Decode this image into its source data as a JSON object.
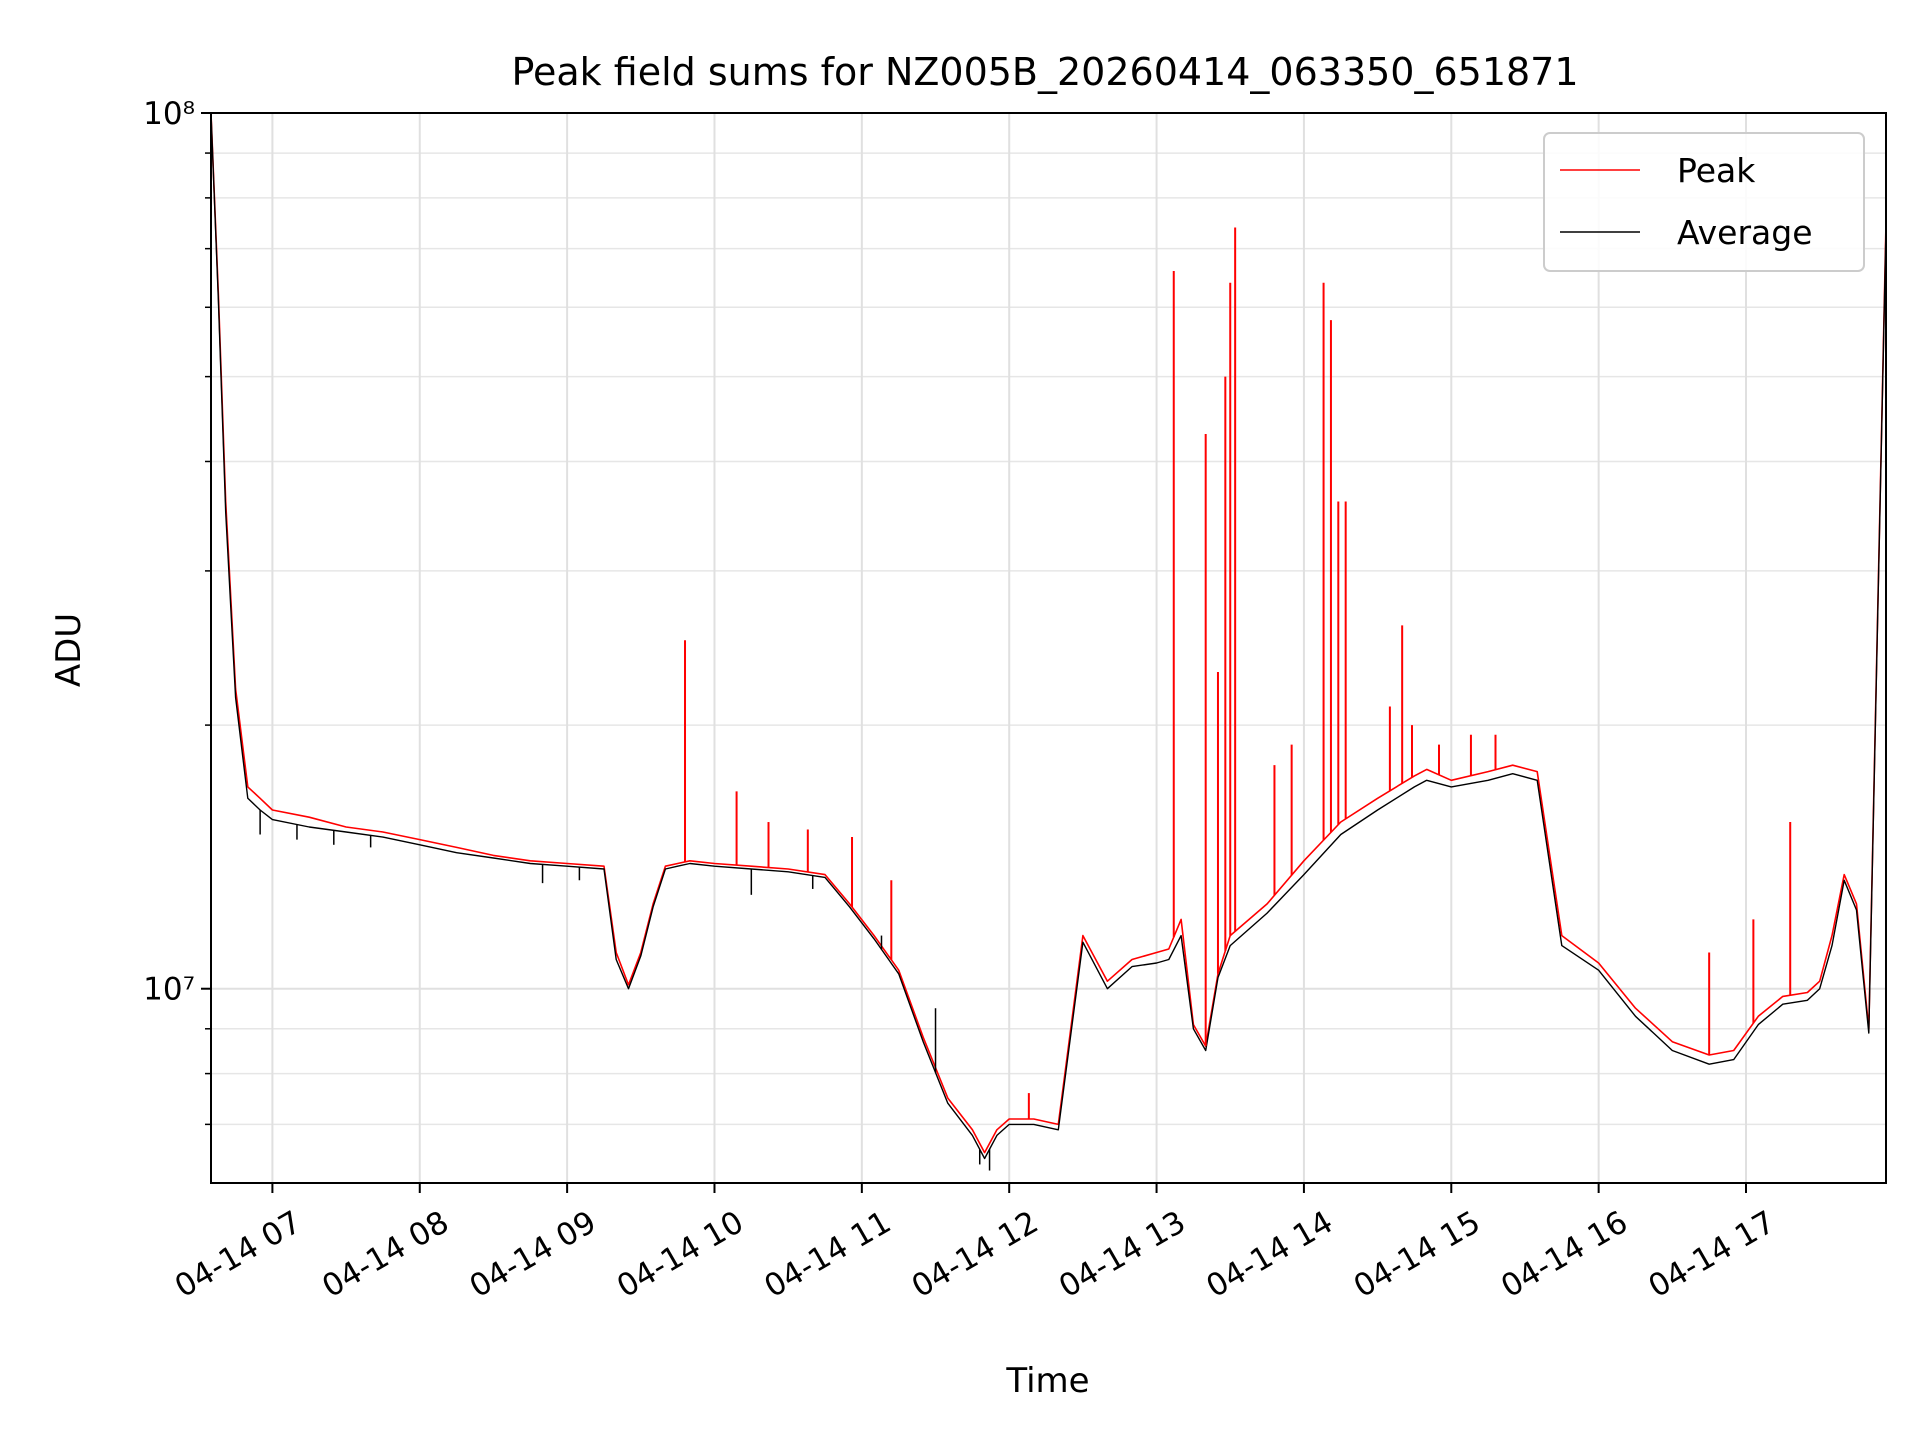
{
  "chart_data": {
    "type": "line",
    "title": "Peak field sums for NZ005B_20260414_063350_651871",
    "xlabel": "Time",
    "ylabel": "ADU",
    "y_scale": "log",
    "ylim": [
      6000000,
      100000000
    ],
    "xlim": [
      "2026-04-14 06:35",
      "2026-04-14 17:57"
    ],
    "x_ticks": [
      "2026-04-14 07:00",
      "2026-04-14 08:00",
      "2026-04-14 09:00",
      "2026-04-14 10:00",
      "2026-04-14 11:00",
      "2026-04-14 12:00",
      "2026-04-14 13:00",
      "2026-04-14 14:00",
      "2026-04-14 15:00",
      "2026-04-14 16:00",
      "2026-04-14 17:00"
    ],
    "x_tick_labels": [
      "04-14 07",
      "04-14 08",
      "04-14 09",
      "04-14 10",
      "04-14 11",
      "04-14 12",
      "04-14 13",
      "04-14 14",
      "04-14 15",
      "04-14 16",
      "04-14 17"
    ],
    "y_ticks_major": [
      10000000,
      100000000
    ],
    "y_tick_labels": [
      "10⁷",
      "10⁸"
    ],
    "grid": true,
    "legend_position": "top-right",
    "series": [
      {
        "name": "Peak",
        "color": "#ff0000",
        "x": [
          "2026-04-14 06:35",
          "2026-04-14 06:38",
          "2026-04-14 06:41",
          "2026-04-14 06:45",
          "2026-04-14 06:50",
          "2026-04-14 06:55",
          "2026-04-14 07:00",
          "2026-04-14 07:15",
          "2026-04-14 07:30",
          "2026-04-14 07:45",
          "2026-04-14 08:00",
          "2026-04-14 08:15",
          "2026-04-14 08:30",
          "2026-04-14 08:45",
          "2026-04-14 09:00",
          "2026-04-14 09:15",
          "2026-04-14 09:20",
          "2026-04-14 09:25",
          "2026-04-14 09:30",
          "2026-04-14 09:35",
          "2026-04-14 09:40",
          "2026-04-14 09:45",
          "2026-04-14 09:50",
          "2026-04-14 10:00",
          "2026-04-14 10:15",
          "2026-04-14 10:30",
          "2026-04-14 10:45",
          "2026-04-14 10:55",
          "2026-04-14 11:05",
          "2026-04-14 11:15",
          "2026-04-14 11:25",
          "2026-04-14 11:35",
          "2026-04-14 11:45",
          "2026-04-14 11:50",
          "2026-04-14 11:55",
          "2026-04-14 12:00",
          "2026-04-14 12:10",
          "2026-04-14 12:20",
          "2026-04-14 12:30",
          "2026-04-14 12:40",
          "2026-04-14 12:50",
          "2026-04-14 13:00",
          "2026-04-14 13:05",
          "2026-04-14 13:10",
          "2026-04-14 13:15",
          "2026-04-14 13:20",
          "2026-04-14 13:25",
          "2026-04-14 13:30",
          "2026-04-14 13:45",
          "2026-04-14 14:00",
          "2026-04-14 14:15",
          "2026-04-14 14:30",
          "2026-04-14 14:45",
          "2026-04-14 14:50",
          "2026-04-14 15:00",
          "2026-04-14 15:15",
          "2026-04-14 15:25",
          "2026-04-14 15:35",
          "2026-04-14 15:45",
          "2026-04-14 16:00",
          "2026-04-14 16:15",
          "2026-04-14 16:30",
          "2026-04-14 16:45",
          "2026-04-14 16:55",
          "2026-04-14 17:05",
          "2026-04-14 17:15",
          "2026-04-14 17:25",
          "2026-04-14 17:30",
          "2026-04-14 17:35",
          "2026-04-14 17:40",
          "2026-04-14 17:45",
          "2026-04-14 17:50",
          "2026-04-14 17:57"
        ],
        "values": [
          100000000,
          62000000,
          36000000,
          22000000,
          17000000,
          16500000,
          16000000,
          15700000,
          15300000,
          15100000,
          14800000,
          14500000,
          14200000,
          14000000,
          13900000,
          13800000,
          11000000,
          10100000,
          11000000,
          12500000,
          13800000,
          13900000,
          14000000,
          13900000,
          13800000,
          13700000,
          13500000,
          12500000,
          11500000,
          10500000,
          8800000,
          7500000,
          6900000,
          6500000,
          6900000,
          7100000,
          7100000,
          7000000,
          11500000,
          10200000,
          10800000,
          11000000,
          11100000,
          12000000,
          9100000,
          8600000,
          10400000,
          11500000,
          12500000,
          14000000,
          15500000,
          16500000,
          17500000,
          17800000,
          17300000,
          17700000,
          18000000,
          17700000,
          11500000,
          10700000,
          9500000,
          8700000,
          8400000,
          8500000,
          9300000,
          9800000,
          9900000,
          10200000,
          11500000,
          13500000,
          12500000,
          9000000,
          75000000
        ],
        "spikes": [
          {
            "x": "2026-04-14 09:48",
            "value": 25000000
          },
          {
            "x": "2026-04-14 10:09",
            "value": 16800000
          },
          {
            "x": "2026-04-14 10:22",
            "value": 15500000
          },
          {
            "x": "2026-04-14 10:38",
            "value": 15200000
          },
          {
            "x": "2026-04-14 10:56",
            "value": 14900000
          },
          {
            "x": "2026-04-14 11:12",
            "value": 13300000
          },
          {
            "x": "2026-04-14 12:08",
            "value": 7600000
          },
          {
            "x": "2026-04-14 13:07",
            "value": 66000000
          },
          {
            "x": "2026-04-14 13:20",
            "value": 43000000
          },
          {
            "x": "2026-04-14 13:25",
            "value": 23000000
          },
          {
            "x": "2026-04-14 13:28",
            "value": 50000000
          },
          {
            "x": "2026-04-14 13:30",
            "value": 64000000
          },
          {
            "x": "2026-04-14 13:32",
            "value": 74000000
          },
          {
            "x": "2026-04-14 13:48",
            "value": 18000000
          },
          {
            "x": "2026-04-14 13:55",
            "value": 19000000
          },
          {
            "x": "2026-04-14 14:08",
            "value": 64000000
          },
          {
            "x": "2026-04-14 14:11",
            "value": 58000000
          },
          {
            "x": "2026-04-14 14:14",
            "value": 36000000
          },
          {
            "x": "2026-04-14 14:17",
            "value": 36000000
          },
          {
            "x": "2026-04-14 14:35",
            "value": 21000000
          },
          {
            "x": "2026-04-14 14:40",
            "value": 26000000
          },
          {
            "x": "2026-04-14 14:44",
            "value": 20000000
          },
          {
            "x": "2026-04-14 14:55",
            "value": 19000000
          },
          {
            "x": "2026-04-14 15:08",
            "value": 19500000
          },
          {
            "x": "2026-04-14 15:18",
            "value": 19500000
          },
          {
            "x": "2026-04-14 16:45",
            "value": 11000000
          },
          {
            "x": "2026-04-14 17:03",
            "value": 12000000
          },
          {
            "x": "2026-04-14 17:18",
            "value": 15500000
          }
        ]
      },
      {
        "name": "Average",
        "color": "#000000",
        "x": [
          "2026-04-14 06:35",
          "2026-04-14 06:38",
          "2026-04-14 06:41",
          "2026-04-14 06:45",
          "2026-04-14 06:50",
          "2026-04-14 06:55",
          "2026-04-14 07:00",
          "2026-04-14 07:15",
          "2026-04-14 07:30",
          "2026-04-14 07:45",
          "2026-04-14 08:00",
          "2026-04-14 08:15",
          "2026-04-14 08:30",
          "2026-04-14 08:45",
          "2026-04-14 09:00",
          "2026-04-14 09:15",
          "2026-04-14 09:20",
          "2026-04-14 09:25",
          "2026-04-14 09:30",
          "2026-04-14 09:35",
          "2026-04-14 09:40",
          "2026-04-14 09:45",
          "2026-04-14 09:50",
          "2026-04-14 10:00",
          "2026-04-14 10:15",
          "2026-04-14 10:30",
          "2026-04-14 10:45",
          "2026-04-14 10:55",
          "2026-04-14 11:05",
          "2026-04-14 11:15",
          "2026-04-14 11:25",
          "2026-04-14 11:35",
          "2026-04-14 11:45",
          "2026-04-14 11:50",
          "2026-04-14 11:55",
          "2026-04-14 12:00",
          "2026-04-14 12:10",
          "2026-04-14 12:20",
          "2026-04-14 12:30",
          "2026-04-14 12:40",
          "2026-04-14 12:50",
          "2026-04-14 13:00",
          "2026-04-14 13:05",
          "2026-04-14 13:10",
          "2026-04-14 13:15",
          "2026-04-14 13:20",
          "2026-04-14 13:25",
          "2026-04-14 13:30",
          "2026-04-14 13:45",
          "2026-04-14 14:00",
          "2026-04-14 14:15",
          "2026-04-14 14:30",
          "2026-04-14 14:45",
          "2026-04-14 14:50",
          "2026-04-14 15:00",
          "2026-04-14 15:15",
          "2026-04-14 15:25",
          "2026-04-14 15:35",
          "2026-04-14 15:45",
          "2026-04-14 16:00",
          "2026-04-14 16:15",
          "2026-04-14 16:30",
          "2026-04-14 16:45",
          "2026-04-14 16:55",
          "2026-04-14 17:05",
          "2026-04-14 17:15",
          "2026-04-14 17:25",
          "2026-04-14 17:30",
          "2026-04-14 17:35",
          "2026-04-14 17:40",
          "2026-04-14 17:45",
          "2026-04-14 17:50",
          "2026-04-14 17:57"
        ],
        "values": [
          100000000,
          61000000,
          35000000,
          21500000,
          16500000,
          16000000,
          15600000,
          15300000,
          15100000,
          14900000,
          14600000,
          14300000,
          14100000,
          13900000,
          13800000,
          13700000,
          10800000,
          10000000,
          10900000,
          12400000,
          13700000,
          13800000,
          13900000,
          13800000,
          13700000,
          13600000,
          13400000,
          12400000,
          11400000,
          10400000,
          8700000,
          7400000,
          6800000,
          6400000,
          6800000,
          7000000,
          7000000,
          6900000,
          11300000,
          10000000,
          10600000,
          10700000,
          10800000,
          11500000,
          9000000,
          8500000,
          10300000,
          11200000,
          12200000,
          13500000,
          15000000,
          16000000,
          17000000,
          17300000,
          17000000,
          17300000,
          17600000,
          17300000,
          11200000,
          10500000,
          9300000,
          8500000,
          8200000,
          8300000,
          9100000,
          9600000,
          9700000,
          10000000,
          11200000,
          13300000,
          12300000,
          8900000,
          74000000
        ],
        "dips": [
          {
            "x": "2026-04-14 06:55",
            "value": 15000000
          },
          {
            "x": "2026-04-14 07:10",
            "value": 14800000
          },
          {
            "x": "2026-04-14 07:25",
            "value": 14600000
          },
          {
            "x": "2026-04-14 07:40",
            "value": 14500000
          },
          {
            "x": "2026-04-14 08:50",
            "value": 13200000
          },
          {
            "x": "2026-04-14 09:05",
            "value": 13300000
          },
          {
            "x": "2026-04-14 10:15",
            "value": 12800000
          },
          {
            "x": "2026-04-14 10:40",
            "value": 13000000
          },
          {
            "x": "2026-04-14 11:08",
            "value": 11500000
          },
          {
            "x": "2026-04-14 11:30",
            "value": 9500000
          },
          {
            "x": "2026-04-14 11:48",
            "value": 6300000
          },
          {
            "x": "2026-04-14 11:52",
            "value": 6200000
          }
        ]
      }
    ]
  }
}
